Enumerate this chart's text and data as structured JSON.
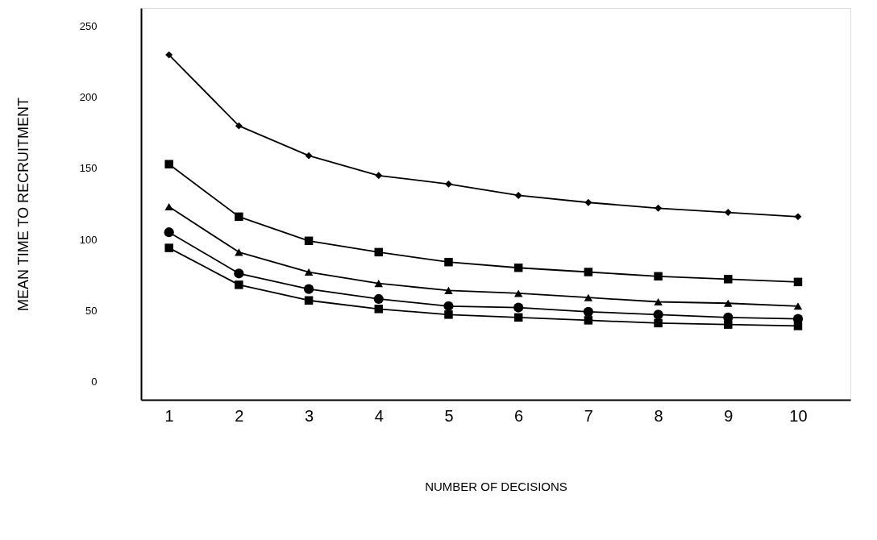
{
  "chart_data": {
    "type": "line",
    "xlabel": "NUMBER OF DECISIONS",
    "ylabel": "MEAN  TIME TO RECRUITMENT",
    "x": [
      1,
      2,
      3,
      4,
      5,
      6,
      7,
      8,
      9,
      10
    ],
    "series": [
      {
        "color": "#000000",
        "marker": "diamond",
        "values": [
          230,
          180,
          159,
          145,
          139,
          131,
          126,
          122,
          119,
          116
        ]
      },
      {
        "color": "#000000",
        "marker": "square",
        "values": [
          153,
          116,
          99,
          91,
          84,
          80,
          77,
          74,
          72,
          70
        ]
      },
      {
        "color": "#000000",
        "marker": "triangle",
        "values": [
          123,
          91,
          77,
          69,
          64,
          62,
          59,
          56,
          55,
          53
        ]
      },
      {
        "color": "#000000",
        "marker": "circle",
        "values": [
          105,
          76,
          65,
          58,
          53,
          52,
          49,
          47,
          45,
          44
        ]
      },
      {
        "color": "#000000",
        "marker": "square",
        "values": [
          94,
          68,
          57,
          51,
          47,
          45,
          43,
          41,
          40,
          39
        ]
      }
    ],
    "xlim": [
      0.6,
      10.75
    ],
    "ylim": [
      -13,
      263
    ],
    "xticks": [
      1,
      2,
      3,
      4,
      5,
      6,
      7,
      8,
      9,
      10
    ],
    "yticks": [
      0,
      50,
      100,
      150,
      200,
      250
    ],
    "grid": false,
    "line_style": "solid"
  }
}
